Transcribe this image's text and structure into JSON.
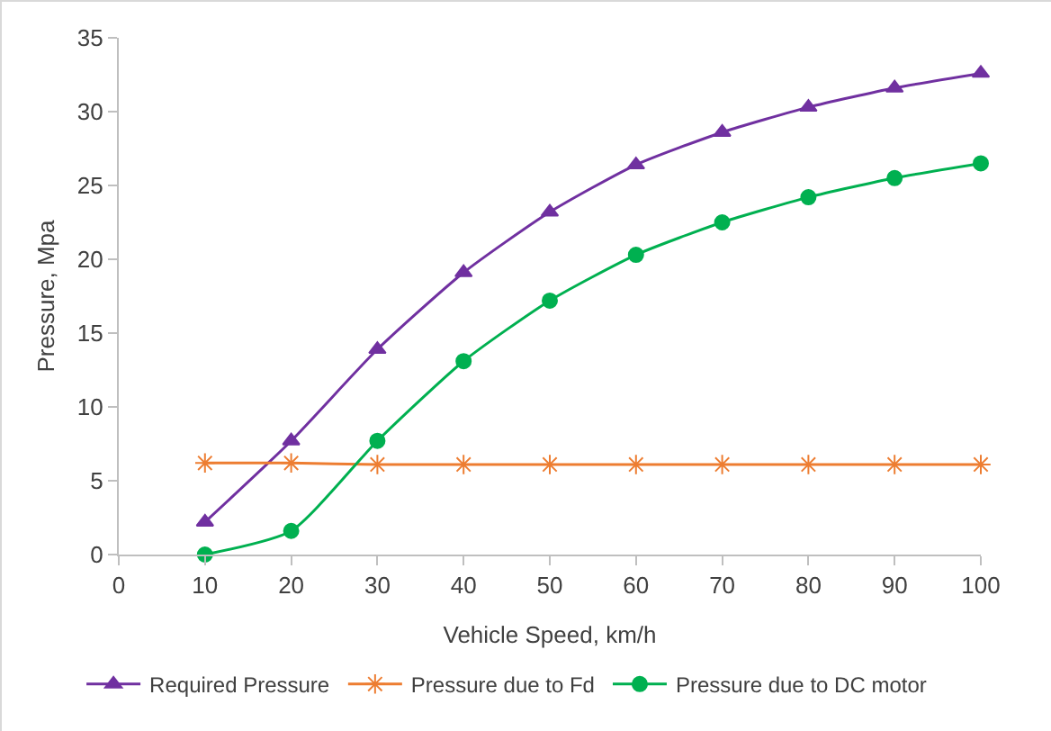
{
  "chart_data": {
    "type": "line",
    "xlabel": "Vehicle Speed, km/h",
    "ylabel": "Pressure, Mpa",
    "x": [
      10,
      20,
      30,
      40,
      50,
      60,
      70,
      80,
      90,
      100
    ],
    "series": [
      {
        "name": "Required Pressure",
        "color": "#7030a0",
        "marker": "triangle",
        "values": [
          2.2,
          7.7,
          13.9,
          19.1,
          23.2,
          26.4,
          28.6,
          30.3,
          31.6,
          32.6
        ]
      },
      {
        "name": "Pressure due to Fd",
        "color": "#ed7d31",
        "marker": "cross",
        "values": [
          6.2,
          6.2,
          6.1,
          6.1,
          6.1,
          6.1,
          6.1,
          6.1,
          6.1,
          6.1
        ]
      },
      {
        "name": "Pressure due to DC motor",
        "color": "#00b050",
        "marker": "circle",
        "values": [
          0,
          1.6,
          7.7,
          13.1,
          17.2,
          20.3,
          22.5,
          24.2,
          25.5,
          26.5
        ]
      }
    ],
    "xlim": [
      0,
      100
    ],
    "xticks": [
      0,
      10,
      20,
      30,
      40,
      50,
      60,
      70,
      80,
      90,
      100
    ],
    "ylim": [
      0,
      35
    ],
    "yticks": [
      0,
      5,
      10,
      15,
      20,
      25,
      30,
      35
    ],
    "grid": false,
    "legend": "bottom",
    "line_style": "solid"
  }
}
